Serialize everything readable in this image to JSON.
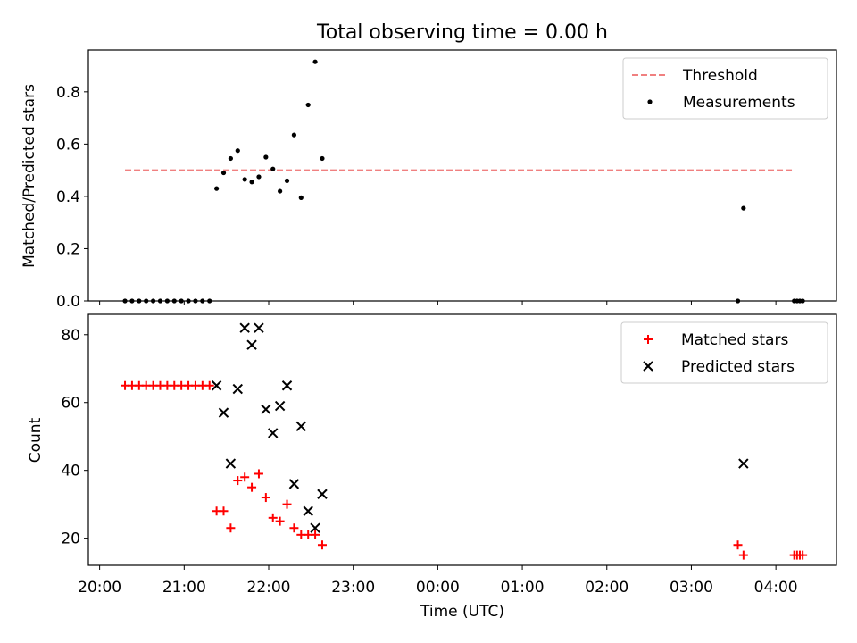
{
  "figure": {
    "title": "Total observing time = 0.00 h"
  },
  "chart_data": [
    {
      "type": "scatter",
      "ylabel": "Matched/Predicted stars",
      "xlim": [
        "19:52",
        "04:43"
      ],
      "ylim": [
        0,
        0.96
      ],
      "grid": false,
      "legend_position": "top-right",
      "yticks": [
        0.0,
        0.2,
        0.4,
        0.6,
        0.8
      ],
      "ytick_labels": [
        "0.0",
        "0.2",
        "0.4",
        "0.6",
        "0.8"
      ],
      "threshold": {
        "name": "Threshold",
        "value": 0.5,
        "x_range": [
          "20:18",
          "04:13"
        ],
        "color": "#f08080"
      },
      "series": [
        {
          "name": "Measurements",
          "color": "#000000",
          "points": [
            [
              "20:18",
              0
            ],
            [
              "20:23",
              0
            ],
            [
              "20:28",
              0
            ],
            [
              "20:33",
              0
            ],
            [
              "20:38",
              0
            ],
            [
              "20:43",
              0
            ],
            [
              "20:48",
              0
            ],
            [
              "20:53",
              0
            ],
            [
              "20:58",
              0
            ],
            [
              "21:03",
              0
            ],
            [
              "21:08",
              0
            ],
            [
              "21:13",
              0
            ],
            [
              "21:18",
              0
            ],
            [
              "21:23",
              0.43
            ],
            [
              "21:28",
              0.49
            ],
            [
              "21:33",
              0.545
            ],
            [
              "21:38",
              0.575
            ],
            [
              "21:43",
              0.465
            ],
            [
              "21:48",
              0.455
            ],
            [
              "21:53",
              0.475
            ],
            [
              "21:58",
              0.55
            ],
            [
              "22:03",
              0.505
            ],
            [
              "22:08",
              0.42
            ],
            [
              "22:13",
              0.46
            ],
            [
              "22:18",
              0.635
            ],
            [
              "22:23",
              0.395
            ],
            [
              "22:28",
              0.75
            ],
            [
              "22:33",
              0.915
            ],
            [
              "22:38",
              0.545
            ],
            [
              "03:33",
              0
            ],
            [
              "03:37",
              0.355
            ],
            [
              "04:13",
              0
            ],
            [
              "04:15",
              0
            ],
            [
              "04:17",
              0
            ],
            [
              "04:19",
              0
            ]
          ]
        }
      ]
    },
    {
      "type": "scatter",
      "xlabel": "Time (UTC)",
      "ylabel": "Count",
      "xlim": [
        "19:52",
        "04:43"
      ],
      "ylim": [
        12,
        86
      ],
      "grid": false,
      "legend_position": "top-right",
      "xticks": [
        "20:00",
        "21:00",
        "22:00",
        "23:00",
        "00:00",
        "01:00",
        "02:00",
        "03:00",
        "04:00"
      ],
      "yticks": [
        20,
        40,
        60,
        80
      ],
      "ytick_labels": [
        "20",
        "40",
        "60",
        "80"
      ],
      "series": [
        {
          "name": "Matched stars",
          "marker": "plus",
          "color": "#ff0000",
          "points": [
            [
              "20:18",
              65
            ],
            [
              "20:23",
              65
            ],
            [
              "20:28",
              65
            ],
            [
              "20:33",
              65
            ],
            [
              "20:38",
              65
            ],
            [
              "20:43",
              65
            ],
            [
              "20:48",
              65
            ],
            [
              "20:53",
              65
            ],
            [
              "20:58",
              65
            ],
            [
              "21:03",
              65
            ],
            [
              "21:08",
              65
            ],
            [
              "21:13",
              65
            ],
            [
              "21:18",
              65
            ],
            [
              "21:23",
              28
            ],
            [
              "21:28",
              28
            ],
            [
              "21:33",
              23
            ],
            [
              "21:38",
              37
            ],
            [
              "21:43",
              38
            ],
            [
              "21:48",
              35
            ],
            [
              "21:53",
              39
            ],
            [
              "21:58",
              32
            ],
            [
              "22:03",
              26
            ],
            [
              "22:08",
              25
            ],
            [
              "22:13",
              30
            ],
            [
              "22:18",
              23
            ],
            [
              "22:23",
              21
            ],
            [
              "22:28",
              21
            ],
            [
              "22:33",
              21
            ],
            [
              "22:38",
              18
            ],
            [
              "03:33",
              18
            ],
            [
              "03:37",
              15
            ],
            [
              "04:13",
              15
            ],
            [
              "04:15",
              15
            ],
            [
              "04:17",
              15
            ],
            [
              "04:19",
              15
            ]
          ]
        },
        {
          "name": "Predicted stars",
          "marker": "x",
          "color": "#000000",
          "points": [
            [
              "21:23",
              65
            ],
            [
              "21:28",
              57
            ],
            [
              "21:33",
              42
            ],
            [
              "21:38",
              64
            ],
            [
              "21:43",
              82
            ],
            [
              "21:48",
              77
            ],
            [
              "21:53",
              82
            ],
            [
              "21:58",
              58
            ],
            [
              "22:03",
              51
            ],
            [
              "22:08",
              59
            ],
            [
              "22:13",
              65
            ],
            [
              "22:18",
              36
            ],
            [
              "22:23",
              53
            ],
            [
              "22:28",
              28
            ],
            [
              "22:33",
              23
            ],
            [
              "22:38",
              33
            ],
            [
              "03:37",
              42
            ]
          ]
        }
      ]
    }
  ]
}
